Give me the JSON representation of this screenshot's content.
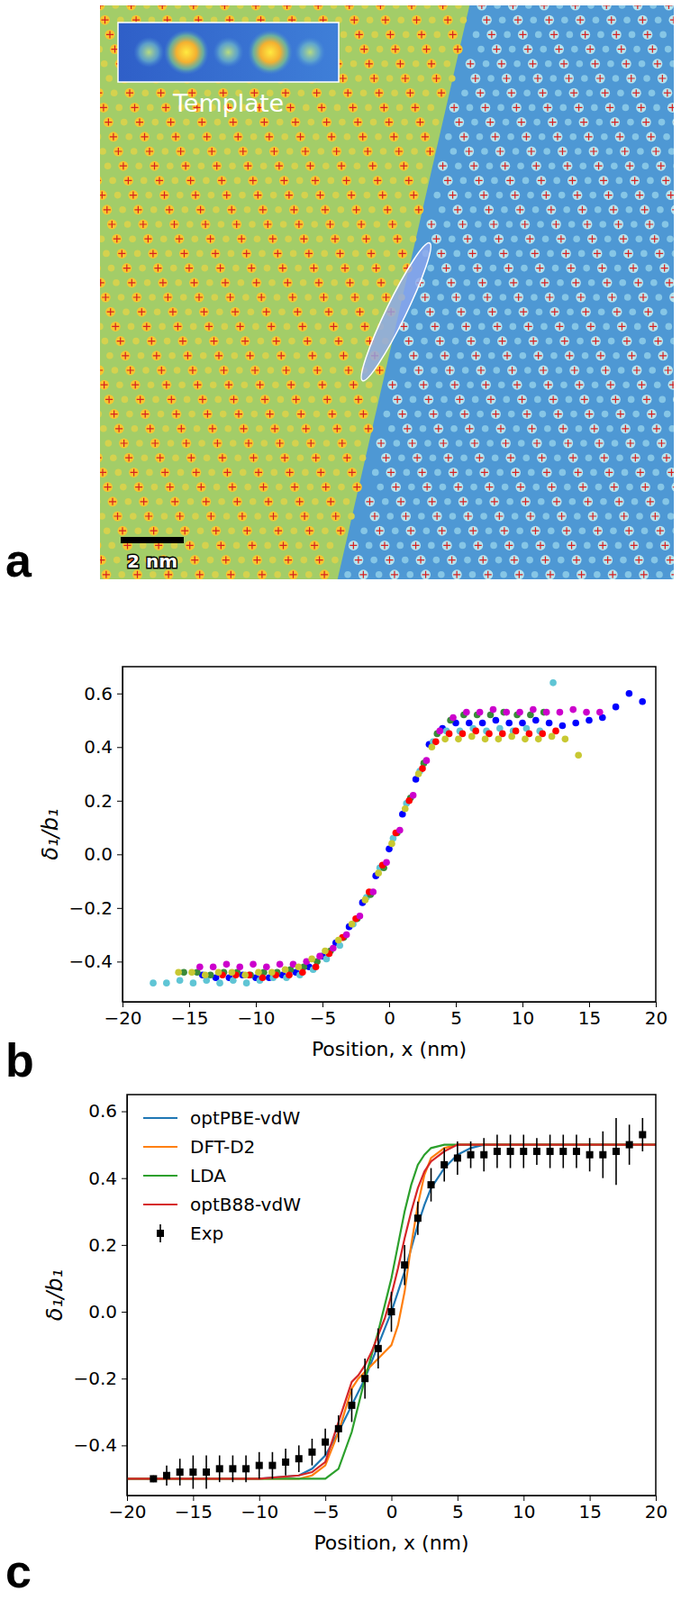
{
  "chart_data": [
    {
      "type": "image",
      "panel_label": "a",
      "inset_label": "Template",
      "scale_bar_label": "2 nm"
    },
    {
      "type": "scatter",
      "panel_label": "b",
      "x_label": "Position, x (nm)",
      "y_label": "δ₁/b₁",
      "marker": "circle",
      "xlim": [
        -20,
        20
      ],
      "ylim": [
        -0.55,
        0.7
      ],
      "xticks": [
        {
          "value": -20,
          "label": "−20"
        },
        {
          "value": -15,
          "label": "−15"
        },
        {
          "value": -10,
          "label": "−10"
        },
        {
          "value": -5,
          "label": "−5"
        },
        0,
        5,
        10,
        15,
        20
      ],
      "yticks": [
        {
          "value": -0.4,
          "label": "−0.4"
        },
        {
          "value": -0.2,
          "label": "−0.2"
        },
        {
          "value": 0,
          "label": "0.0"
        },
        0.2,
        0.4,
        0.6
      ],
      "series": [
        {
          "color": "#0000ff",
          "x": [
            -14,
            -13,
            -12,
            -11,
            -10,
            -9,
            -8,
            -7,
            -6,
            -5,
            -4,
            -3,
            -2,
            -1,
            0,
            1,
            2,
            3,
            4,
            5,
            6,
            7,
            8,
            9,
            10,
            11,
            12,
            13,
            14,
            15,
            16,
            17,
            18,
            19
          ],
          "values": [
            -0.45,
            -0.46,
            -0.46,
            -0.45,
            -0.46,
            -0.46,
            -0.45,
            -0.44,
            -0.42,
            -0.38,
            -0.33,
            -0.27,
            -0.18,
            -0.08,
            0.02,
            0.15,
            0.28,
            0.41,
            0.47,
            0.49,
            0.49,
            0.49,
            0.5,
            0.49,
            0.49,
            0.5,
            0.49,
            0.48,
            0.49,
            0.5,
            0.51,
            0.55,
            0.6,
            0.57
          ]
        },
        {
          "color": "#5fc5d5",
          "x": [
            -17.7,
            -16.7,
            -15.7,
            -14.7,
            -13.7,
            -12.7,
            -11.7,
            -10.7,
            -9.7,
            -8.7,
            -7.7,
            -6.7,
            -5.7,
            -4.7,
            -3.7,
            -2.7,
            -1.7,
            -0.7,
            0.3,
            1.3,
            2.3,
            3.3,
            4.3,
            5.3,
            6.3,
            7.3,
            8.3,
            9.3,
            10.3,
            11.3,
            12.3
          ],
          "values": [
            -0.48,
            -0.48,
            -0.47,
            -0.48,
            -0.47,
            -0.48,
            -0.47,
            -0.48,
            -0.47,
            -0.46,
            -0.46,
            -0.45,
            -0.43,
            -0.39,
            -0.34,
            -0.26,
            -0.16,
            -0.05,
            0.06,
            0.19,
            0.31,
            0.42,
            0.46,
            0.46,
            0.47,
            0.46,
            0.47,
            0.46,
            0.47,
            0.46,
            0.64
          ]
        },
        {
          "color": "#3a8a3a",
          "x": [
            -15.4,
            -14.4,
            -13.4,
            -12.4,
            -11.4,
            -10.4,
            -9.4,
            -8.4,
            -7.4,
            -6.4,
            -5.4,
            -4.4,
            -3.4,
            -2.4,
            -1.4,
            -0.4,
            0.6,
            1.6,
            2.6,
            3.6,
            4.6,
            5.6,
            6.6,
            7.6,
            8.6,
            9.6,
            10.6,
            11.6
          ],
          "values": [
            -0.44,
            -0.44,
            -0.45,
            -0.44,
            -0.44,
            -0.45,
            -0.44,
            -0.44,
            -0.43,
            -0.42,
            -0.4,
            -0.36,
            -0.31,
            -0.24,
            -0.15,
            -0.05,
            0.08,
            0.21,
            0.34,
            0.45,
            0.5,
            0.52,
            0.52,
            0.52,
            0.53,
            0.52,
            0.52,
            0.53
          ]
        },
        {
          "color": "#ff0000",
          "x": [
            -12.5,
            -11.5,
            -10.5,
            -9.5,
            -8.5,
            -7.5,
            -6.5,
            -5.5,
            -4.5,
            -3.5,
            -2.5,
            -1.5,
            -0.5,
            0.5,
            1.5,
            2.5,
            3.5,
            4.5,
            5.5,
            6.5,
            7.5,
            8.5,
            9.5,
            10.5,
            11.5,
            12.5
          ],
          "values": [
            -0.45,
            -0.45,
            -0.45,
            -0.46,
            -0.45,
            -0.45,
            -0.44,
            -0.42,
            -0.37,
            -0.31,
            -0.24,
            -0.14,
            -0.04,
            0.08,
            0.2,
            0.32,
            0.42,
            0.45,
            0.45,
            0.46,
            0.45,
            0.45,
            0.46,
            0.45,
            0.45,
            0.46
          ]
        },
        {
          "color": "#cc00cc",
          "x": [
            -14.2,
            -13.2,
            -12.2,
            -11.2,
            -10.2,
            -9.2,
            -8.2,
            -7.2,
            -6.2,
            -5.2,
            -4.2,
            -3.2,
            -2.2,
            -1.2,
            -0.2,
            0.8,
            1.8,
            2.8,
            3.8,
            4.8,
            5.8,
            6.8,
            7.8,
            8.8,
            9.8,
            10.8,
            11.8,
            12.8,
            13.8,
            14.8,
            15.8
          ],
          "values": [
            -0.42,
            -0.42,
            -0.41,
            -0.42,
            -0.41,
            -0.42,
            -0.41,
            -0.41,
            -0.4,
            -0.38,
            -0.35,
            -0.3,
            -0.23,
            -0.14,
            -0.03,
            0.09,
            0.22,
            0.35,
            0.46,
            0.51,
            0.53,
            0.53,
            0.54,
            0.53,
            0.53,
            0.54,
            0.53,
            0.53,
            0.54,
            0.53,
            0.53
          ]
        },
        {
          "color": "#c8c832",
          "x": [
            -15.8,
            -14.8,
            -13.8,
            -12.8,
            -11.8,
            -10.8,
            -9.8,
            -8.8,
            -7.8,
            -6.8,
            -5.8,
            -4.8,
            -3.8,
            -2.8,
            -1.8,
            -0.8,
            0.2,
            1.2,
            2.2,
            3.2,
            4.2,
            5.2,
            6.2,
            7.2,
            8.2,
            9.2,
            10.2,
            11.2,
            12.2,
            13.2,
            14.2
          ],
          "values": [
            -0.44,
            -0.44,
            -0.45,
            -0.44,
            -0.44,
            -0.45,
            -0.44,
            -0.44,
            -0.43,
            -0.42,
            -0.39,
            -0.36,
            -0.32,
            -0.26,
            -0.17,
            -0.07,
            0.04,
            0.17,
            0.3,
            0.4,
            0.43,
            0.43,
            0.44,
            0.43,
            0.43,
            0.44,
            0.43,
            0.43,
            0.44,
            0.43,
            0.37
          ]
        }
      ]
    },
    {
      "type": "line",
      "panel_label": "c",
      "x_label": "Position, x (nm)",
      "y_label": "δ₁/b₁",
      "legend": "upper left",
      "xlim": [
        -20,
        20
      ],
      "ylim": [
        -0.55,
        0.65
      ],
      "xticks": [
        {
          "value": -20,
          "label": "−20"
        },
        {
          "value": -15,
          "label": "−15"
        },
        {
          "value": -10,
          "label": "−10"
        },
        {
          "value": -5,
          "label": "−5"
        },
        0,
        5,
        10,
        15,
        20
      ],
      "yticks": [
        {
          "value": -0.4,
          "label": "−0.4"
        },
        {
          "value": -0.2,
          "label": "−0.2"
        },
        {
          "value": 0,
          "label": "0.0"
        },
        0.2,
        0.4,
        0.6
      ],
      "x": [
        -20,
        -10,
        -7,
        -6,
        -5,
        -4,
        -3,
        -2.5,
        -2,
        -1.5,
        -1,
        -0.5,
        0,
        0.5,
        1,
        1.5,
        2,
        2.5,
        3,
        4,
        5,
        6,
        7,
        10,
        20
      ],
      "series": [
        {
          "name": "optPBE-vdW",
          "color": "#1f77b4",
          "type": "line",
          "values": [
            -0.5,
            -0.5,
            -0.49,
            -0.47,
            -0.43,
            -0.36,
            -0.28,
            -0.24,
            -0.2,
            -0.15,
            -0.1,
            -0.05,
            0.0,
            0.06,
            0.12,
            0.19,
            0.26,
            0.32,
            0.37,
            0.43,
            0.47,
            0.49,
            0.5,
            0.5,
            0.5
          ]
        },
        {
          "name": "DFT-D2",
          "color": "#ff7f0e",
          "type": "line",
          "values": [
            -0.5,
            -0.5,
            -0.5,
            -0.49,
            -0.46,
            -0.36,
            -0.23,
            -0.2,
            -0.18,
            -0.16,
            -0.14,
            -0.12,
            -0.1,
            -0.04,
            0.06,
            0.2,
            0.32,
            0.41,
            0.46,
            0.49,
            0.5,
            0.5,
            0.5,
            0.5,
            0.5
          ]
        },
        {
          "name": "LDA",
          "color": "#2ca02c",
          "type": "line",
          "values": [
            -0.5,
            -0.5,
            -0.5,
            -0.5,
            -0.5,
            -0.47,
            -0.36,
            -0.28,
            -0.2,
            -0.13,
            -0.06,
            0.02,
            0.1,
            0.2,
            0.3,
            0.38,
            0.44,
            0.47,
            0.49,
            0.5,
            0.5,
            0.5,
            0.5,
            0.5,
            0.5
          ]
        },
        {
          "name": "optB88-vdW",
          "color": "#d62728",
          "type": "line",
          "values": [
            -0.5,
            -0.5,
            -0.49,
            -0.48,
            -0.45,
            -0.33,
            -0.21,
            -0.19,
            -0.16,
            -0.12,
            -0.07,
            -0.02,
            0.05,
            0.13,
            0.22,
            0.3,
            0.37,
            0.42,
            0.45,
            0.48,
            0.5,
            0.5,
            0.5,
            0.5,
            0.5
          ]
        },
        {
          "name": "Exp",
          "color": "#000000",
          "type": "scatter",
          "marker": "square",
          "x": [
            -18,
            -17,
            -16,
            -15,
            -14,
            -13,
            -12,
            -11,
            -10,
            -9,
            -8,
            -7,
            -6,
            -5,
            -4,
            -3,
            -2,
            -1,
            0,
            1,
            2,
            3,
            4,
            5,
            6,
            7,
            8,
            9,
            10,
            11,
            12,
            13,
            14,
            15,
            16,
            17,
            18,
            19
          ],
          "values": [
            -0.5,
            -0.49,
            -0.48,
            -0.48,
            -0.48,
            -0.47,
            -0.47,
            -0.47,
            -0.46,
            -0.46,
            -0.45,
            -0.44,
            -0.42,
            -0.39,
            -0.35,
            -0.28,
            -0.2,
            -0.11,
            0.0,
            0.14,
            0.28,
            0.38,
            0.44,
            0.46,
            0.47,
            0.47,
            0.48,
            0.48,
            0.48,
            0.48,
            0.48,
            0.48,
            0.48,
            0.47,
            0.47,
            0.48,
            0.5,
            0.53
          ],
          "errors": [
            0.01,
            0.03,
            0.04,
            0.05,
            0.05,
            0.04,
            0.04,
            0.04,
            0.04,
            0.04,
            0.04,
            0.04,
            0.04,
            0.04,
            0.04,
            0.05,
            0.06,
            0.06,
            0.06,
            0.06,
            0.05,
            0.05,
            0.05,
            0.05,
            0.04,
            0.05,
            0.05,
            0.05,
            0.05,
            0.04,
            0.05,
            0.05,
            0.05,
            0.05,
            0.07,
            0.1,
            0.06,
            0.05
          ]
        }
      ]
    }
  ]
}
